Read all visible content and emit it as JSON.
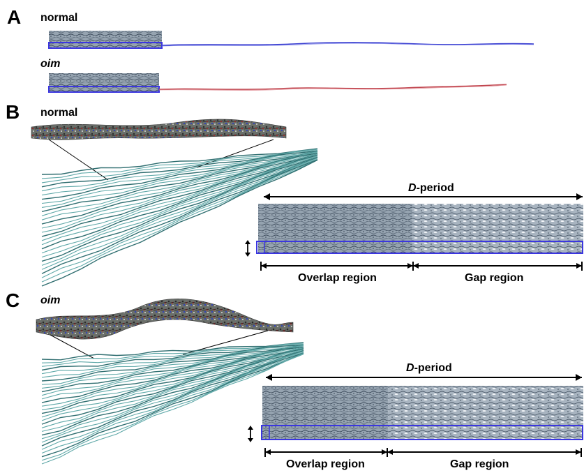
{
  "panels": {
    "A": {
      "letter": "A",
      "normal_label": "normal",
      "oim_label": "oim",
      "normal_strand_color": "#3a3fd0",
      "oim_strand_color": "#c0454e"
    },
    "B": {
      "letter": "B",
      "label": "normal",
      "dperiod_italic": "D",
      "dperiod_rest": "-period",
      "overlap_label": "Overlap region",
      "gap_label": "Gap region"
    },
    "C": {
      "letter": "C",
      "label": "oim",
      "dperiod_italic": "D",
      "dperiod_rest": "-period",
      "overlap_label": "Overlap region",
      "gap_label": "Gap region"
    }
  },
  "colors": {
    "fibril_fill": "#8a9aa8",
    "fibril_dark": "#4a5868",
    "fibril_light": "#c8d2dc",
    "highlight_box": "#3b36e0",
    "strand_cyan": "#5fa8a8",
    "strand_cyan_dark": "#2f6e70",
    "molecule_dark": "#353535",
    "molecule_red": "#c03030",
    "molecule_blue": "#3040c0"
  }
}
